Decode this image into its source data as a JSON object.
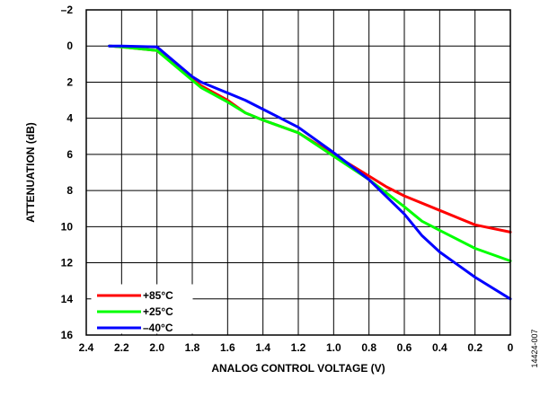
{
  "figure_id": "14424-007",
  "chart_data": {
    "type": "line",
    "title": "",
    "xlabel": "ANALOG CONTROL VOLTAGE (V)",
    "ylabel": "ATTENUATION (dB)",
    "xlim": [
      2.4,
      0
    ],
    "ylim": [
      16,
      -2
    ],
    "x_reversed": true,
    "y_reversed": true,
    "x_ticks": [
      "2.4",
      "2.2",
      "2.0",
      "1.8",
      "1.6",
      "1.4",
      "1.2",
      "1.0",
      "0.8",
      "0.6",
      "0.4",
      "0.2",
      "0"
    ],
    "y_ticks": [
      "–2",
      "0",
      "2",
      "4",
      "6",
      "8",
      "10",
      "12",
      "14",
      "16"
    ],
    "grid": true,
    "legend_position": "bottom-left",
    "series": [
      {
        "name": "+85°C",
        "color": "#ff0000",
        "x": [
          2.27,
          2.2,
          2.0,
          1.8,
          1.75,
          1.6,
          1.5,
          1.4,
          1.2,
          1.0,
          0.8,
          0.7,
          0.6,
          0.4,
          0.2,
          0
        ],
        "y": [
          0.0,
          0.05,
          0.25,
          1.8,
          2.2,
          3.0,
          3.7,
          4.1,
          4.8,
          6.0,
          7.2,
          7.8,
          8.3,
          9.1,
          9.9,
          10.3
        ]
      },
      {
        "name": "+25°C",
        "color": "#00ff00",
        "x": [
          2.27,
          2.2,
          2.0,
          1.8,
          1.75,
          1.6,
          1.5,
          1.4,
          1.2,
          1.0,
          0.8,
          0.6,
          0.5,
          0.4,
          0.2,
          0
        ],
        "y": [
          0.0,
          0.05,
          0.25,
          1.9,
          2.3,
          3.1,
          3.7,
          4.1,
          4.8,
          6.1,
          7.4,
          8.9,
          9.7,
          10.2,
          11.2,
          11.9
        ]
      },
      {
        "name": "–40°C",
        "color": "#0000ff",
        "x": [
          2.27,
          2.2,
          2.0,
          1.8,
          1.75,
          1.6,
          1.5,
          1.4,
          1.2,
          1.0,
          0.8,
          0.6,
          0.5,
          0.4,
          0.2,
          0
        ],
        "y": [
          0.0,
          0.0,
          0.05,
          1.7,
          2.0,
          2.6,
          3.0,
          3.5,
          4.5,
          5.9,
          7.4,
          9.3,
          10.5,
          11.4,
          12.8,
          14.0
        ]
      }
    ]
  }
}
